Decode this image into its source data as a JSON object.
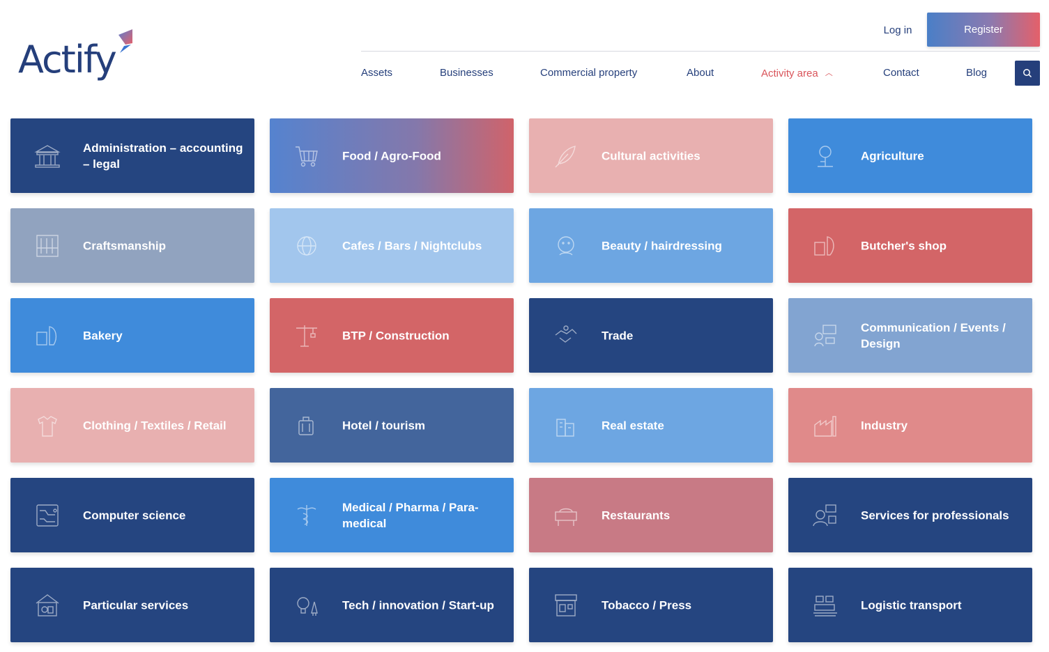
{
  "brand": {
    "name": "Actify"
  },
  "auth": {
    "login": "Log in",
    "register": "Register"
  },
  "nav": {
    "items": [
      {
        "label": "Assets"
      },
      {
        "label": "Businesses"
      },
      {
        "label": "Commercial property"
      },
      {
        "label": "About"
      },
      {
        "label": "Activity area"
      },
      {
        "label": "Contact"
      },
      {
        "label": "Blog"
      }
    ],
    "active": "Activity area",
    "search_icon": "search-icon"
  },
  "colors": {
    "navy": "#254580",
    "accent_red": "#d9545a"
  },
  "cards": [
    {
      "label": "Administration – accounting – legal",
      "icon": "bank-building-icon"
    },
    {
      "label": "Food / Agro-Food",
      "icon": "shopping-cart-icon"
    },
    {
      "label": "Cultural activities",
      "icon": "feather-icon"
    },
    {
      "label": "Agriculture",
      "icon": "tree-icon"
    },
    {
      "label": "Craftsmanship",
      "icon": "tools-icon"
    },
    {
      "label": "Cafes / Bars / Nightclubs",
      "icon": "globe-icon"
    },
    {
      "label": "Beauty / hairdressing",
      "icon": "face-icon"
    },
    {
      "label": "Butcher's shop",
      "icon": "meat-icon"
    },
    {
      "label": "Bakery",
      "icon": "bread-icon"
    },
    {
      "label": "BTP / Construction",
      "icon": "crane-icon"
    },
    {
      "label": "Trade",
      "icon": "handshake-icon"
    },
    {
      "label": "Communication / Events / Design",
      "icon": "megaphone-icon"
    },
    {
      "label": "Clothing / Textiles / Retail",
      "icon": "shirt-icon"
    },
    {
      "label": "Hotel / tourism",
      "icon": "luggage-icon"
    },
    {
      "label": "Real estate",
      "icon": "buildings-icon"
    },
    {
      "label": "Industry",
      "icon": "factory-icon"
    },
    {
      "label": "Computer science",
      "icon": "circuit-icon"
    },
    {
      "label": "Medical / Pharma / Para-medical",
      "icon": "caduceus-icon"
    },
    {
      "label": "Restaurants",
      "icon": "restaurant-icon"
    },
    {
      "label": "Services for professionals",
      "icon": "support-agent-icon"
    },
    {
      "label": "Particular services",
      "icon": "home-service-icon"
    },
    {
      "label": "Tech / innovation / Start-up",
      "icon": "lightbulb-rocket-icon"
    },
    {
      "label": "Tobacco / Press",
      "icon": "shop-front-icon"
    },
    {
      "label": "Logistic transport",
      "icon": "cargo-icon"
    }
  ]
}
